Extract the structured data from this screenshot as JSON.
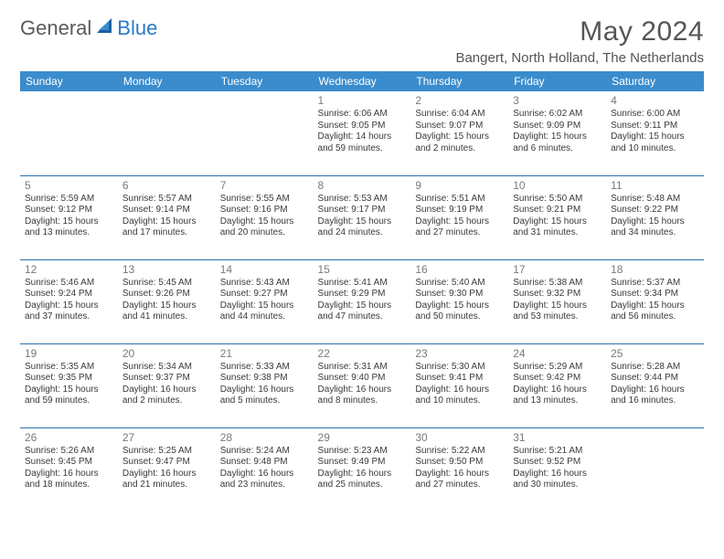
{
  "brand": {
    "part1": "General",
    "part2": "Blue"
  },
  "title": "May 2024",
  "location": "Bangert, North Holland, The Netherlands",
  "colors": {
    "header_bg": "#3b8ccc",
    "header_text": "#ffffff",
    "row_divider": "#2a6fae",
    "text": "#3a3a3a",
    "muted": "#7a7a7a",
    "brand_gray": "#5a5a5a",
    "brand_blue": "#2a7ac7",
    "background": "#ffffff"
  },
  "typography": {
    "title_fontsize": 30,
    "location_fontsize": 15,
    "dow_fontsize": 12,
    "daynum_fontsize": 12,
    "info_fontsize": 10
  },
  "dow": [
    "Sunday",
    "Monday",
    "Tuesday",
    "Wednesday",
    "Thursday",
    "Friday",
    "Saturday"
  ],
  "weeks": [
    [
      null,
      null,
      null,
      {
        "n": "1",
        "sr": "Sunrise: 6:06 AM",
        "ss": "Sunset: 9:05 PM",
        "dl": "Daylight: 14 hours and 59 minutes."
      },
      {
        "n": "2",
        "sr": "Sunrise: 6:04 AM",
        "ss": "Sunset: 9:07 PM",
        "dl": "Daylight: 15 hours and 2 minutes."
      },
      {
        "n": "3",
        "sr": "Sunrise: 6:02 AM",
        "ss": "Sunset: 9:09 PM",
        "dl": "Daylight: 15 hours and 6 minutes."
      },
      {
        "n": "4",
        "sr": "Sunrise: 6:00 AM",
        "ss": "Sunset: 9:11 PM",
        "dl": "Daylight: 15 hours and 10 minutes."
      }
    ],
    [
      {
        "n": "5",
        "sr": "Sunrise: 5:59 AM",
        "ss": "Sunset: 9:12 PM",
        "dl": "Daylight: 15 hours and 13 minutes."
      },
      {
        "n": "6",
        "sr": "Sunrise: 5:57 AM",
        "ss": "Sunset: 9:14 PM",
        "dl": "Daylight: 15 hours and 17 minutes."
      },
      {
        "n": "7",
        "sr": "Sunrise: 5:55 AM",
        "ss": "Sunset: 9:16 PM",
        "dl": "Daylight: 15 hours and 20 minutes."
      },
      {
        "n": "8",
        "sr": "Sunrise: 5:53 AM",
        "ss": "Sunset: 9:17 PM",
        "dl": "Daylight: 15 hours and 24 minutes."
      },
      {
        "n": "9",
        "sr": "Sunrise: 5:51 AM",
        "ss": "Sunset: 9:19 PM",
        "dl": "Daylight: 15 hours and 27 minutes."
      },
      {
        "n": "10",
        "sr": "Sunrise: 5:50 AM",
        "ss": "Sunset: 9:21 PM",
        "dl": "Daylight: 15 hours and 31 minutes."
      },
      {
        "n": "11",
        "sr": "Sunrise: 5:48 AM",
        "ss": "Sunset: 9:22 PM",
        "dl": "Daylight: 15 hours and 34 minutes."
      }
    ],
    [
      {
        "n": "12",
        "sr": "Sunrise: 5:46 AM",
        "ss": "Sunset: 9:24 PM",
        "dl": "Daylight: 15 hours and 37 minutes."
      },
      {
        "n": "13",
        "sr": "Sunrise: 5:45 AM",
        "ss": "Sunset: 9:26 PM",
        "dl": "Daylight: 15 hours and 41 minutes."
      },
      {
        "n": "14",
        "sr": "Sunrise: 5:43 AM",
        "ss": "Sunset: 9:27 PM",
        "dl": "Daylight: 15 hours and 44 minutes."
      },
      {
        "n": "15",
        "sr": "Sunrise: 5:41 AM",
        "ss": "Sunset: 9:29 PM",
        "dl": "Daylight: 15 hours and 47 minutes."
      },
      {
        "n": "16",
        "sr": "Sunrise: 5:40 AM",
        "ss": "Sunset: 9:30 PM",
        "dl": "Daylight: 15 hours and 50 minutes."
      },
      {
        "n": "17",
        "sr": "Sunrise: 5:38 AM",
        "ss": "Sunset: 9:32 PM",
        "dl": "Daylight: 15 hours and 53 minutes."
      },
      {
        "n": "18",
        "sr": "Sunrise: 5:37 AM",
        "ss": "Sunset: 9:34 PM",
        "dl": "Daylight: 15 hours and 56 minutes."
      }
    ],
    [
      {
        "n": "19",
        "sr": "Sunrise: 5:35 AM",
        "ss": "Sunset: 9:35 PM",
        "dl": "Daylight: 15 hours and 59 minutes."
      },
      {
        "n": "20",
        "sr": "Sunrise: 5:34 AM",
        "ss": "Sunset: 9:37 PM",
        "dl": "Daylight: 16 hours and 2 minutes."
      },
      {
        "n": "21",
        "sr": "Sunrise: 5:33 AM",
        "ss": "Sunset: 9:38 PM",
        "dl": "Daylight: 16 hours and 5 minutes."
      },
      {
        "n": "22",
        "sr": "Sunrise: 5:31 AM",
        "ss": "Sunset: 9:40 PM",
        "dl": "Daylight: 16 hours and 8 minutes."
      },
      {
        "n": "23",
        "sr": "Sunrise: 5:30 AM",
        "ss": "Sunset: 9:41 PM",
        "dl": "Daylight: 16 hours and 10 minutes."
      },
      {
        "n": "24",
        "sr": "Sunrise: 5:29 AM",
        "ss": "Sunset: 9:42 PM",
        "dl": "Daylight: 16 hours and 13 minutes."
      },
      {
        "n": "25",
        "sr": "Sunrise: 5:28 AM",
        "ss": "Sunset: 9:44 PM",
        "dl": "Daylight: 16 hours and 16 minutes."
      }
    ],
    [
      {
        "n": "26",
        "sr": "Sunrise: 5:26 AM",
        "ss": "Sunset: 9:45 PM",
        "dl": "Daylight: 16 hours and 18 minutes."
      },
      {
        "n": "27",
        "sr": "Sunrise: 5:25 AM",
        "ss": "Sunset: 9:47 PM",
        "dl": "Daylight: 16 hours and 21 minutes."
      },
      {
        "n": "28",
        "sr": "Sunrise: 5:24 AM",
        "ss": "Sunset: 9:48 PM",
        "dl": "Daylight: 16 hours and 23 minutes."
      },
      {
        "n": "29",
        "sr": "Sunrise: 5:23 AM",
        "ss": "Sunset: 9:49 PM",
        "dl": "Daylight: 16 hours and 25 minutes."
      },
      {
        "n": "30",
        "sr": "Sunrise: 5:22 AM",
        "ss": "Sunset: 9:50 PM",
        "dl": "Daylight: 16 hours and 27 minutes."
      },
      {
        "n": "31",
        "sr": "Sunrise: 5:21 AM",
        "ss": "Sunset: 9:52 PM",
        "dl": "Daylight: 16 hours and 30 minutes."
      },
      null
    ]
  ]
}
